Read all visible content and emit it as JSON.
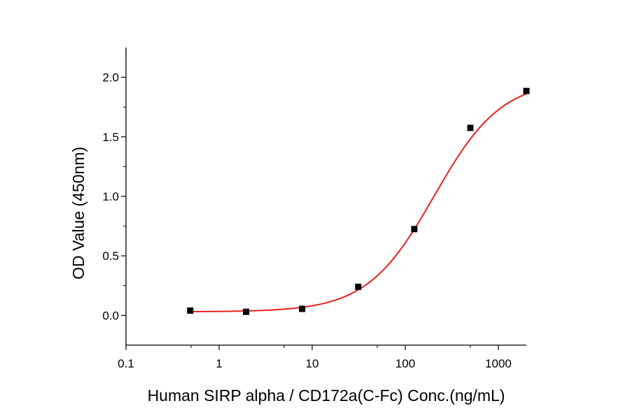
{
  "chart_data": {
    "type": "scatter",
    "xlabel": "Human SIRP alpha / CD172a(C-Fc) Conc.(ng/mL)",
    "ylabel": "OD Value (450nm)",
    "xscale": "log",
    "xlim": [
      0.1,
      2000
    ],
    "ylim": [
      -0.25,
      2.25
    ],
    "xticks": [
      0.1,
      1,
      10,
      100,
      1000
    ],
    "xtick_labels": [
      "0.1",
      "1",
      "10",
      "100",
      "1000"
    ],
    "yticks": [
      0.0,
      0.5,
      1.0,
      1.5,
      2.0
    ],
    "ytick_labels": [
      "0.0",
      "0.5",
      "1.0",
      "1.5",
      "2.0"
    ],
    "grid": false,
    "series": [
      {
        "color": "#000000",
        "marker": "square",
        "x": [
          0.49,
          1.95,
          7.8,
          31.25,
          125,
          500,
          2000
        ],
        "y": [
          0.04,
          0.03,
          0.055,
          0.24,
          0.725,
          1.575,
          1.885
        ]
      }
    ],
    "fit": {
      "type": "4PL sigmoid fit",
      "color": "#e8201e",
      "bottom": 0.03,
      "top": 1.98,
      "ec50": 205,
      "hill": 1.2
    }
  }
}
